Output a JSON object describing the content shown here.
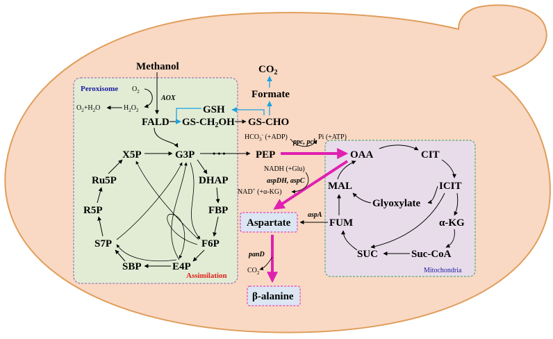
{
  "compartments": {
    "peroxisome": "Peroxisome",
    "assimilation": "Assimilation",
    "mitochondria": "Mitochondria"
  },
  "metabolites": {
    "methanol": "Methanol",
    "co2_top": "CO",
    "co2_sub": "2",
    "formate": "Formate",
    "gsh": "GSH",
    "fald": "FALD",
    "gs_ch2oh": "GS-CH",
    "gs_ch2oh_sub": "2",
    "gs_ch2oh_end": "OH",
    "gs_cho": "GS-CHO",
    "x5p": "X5P",
    "g3p": "G3P",
    "ru5p": "Ru5P",
    "dhap": "DHAP",
    "r5p": "R5P",
    "fbp": "FBP",
    "s7p": "S7P",
    "f6p": "F6P",
    "sbp": "SBP",
    "e4p": "E4P",
    "pep": "PEP",
    "oaa": "OAA",
    "cit": "CIT",
    "icit": "ICIT",
    "mal": "MAL",
    "glyoxylate": "Glyoxylate",
    "fum": "FUM",
    "akg": "α-KG",
    "suc": "SUC",
    "succoa": "Suc-CoA",
    "aspartate": "Aspartate",
    "balanine": "β-alanine"
  },
  "cofactors": {
    "o2": "O",
    "o2_sub": "2",
    "h2o2_a": "H",
    "h2o2_sub1": "2",
    "h2o2_b": "O",
    "h2o2_sub2": "2",
    "o2h2o_a": "O",
    "o2h2o_sub1": "2",
    "o2h2o_b": "+H",
    "o2h2o_sub2": "2",
    "o2h2o_c": "O",
    "hco3_a": "HCO",
    "hco3_sub": "3",
    "hco3_sup": "-",
    "hco3_b": " (+ADP)",
    "pi": "Pi (+ATP)",
    "nadh": "NADH (+Glu)",
    "nad_a": "NAD",
    "nad_sup": "+",
    "nad_b": " (+α-KG)",
    "co2_pand_a": "CO",
    "co2_pand_sub": "2"
  },
  "enzymes": {
    "aox": "AOX",
    "ppc_pck": "ppc, pck",
    "aspdh_aspc": "aspDH, aspC",
    "aspa": "aspA",
    "pand": "panD"
  },
  "colors": {
    "cell_fill": "#f9d9c4",
    "cell_stroke": "#e09d5a",
    "peroxisome_fill": "#e2ecd5",
    "mito_fill": "#e8dcea",
    "product_fill": "#dbe6f2",
    "magenta": "#e020b0",
    "blue": "#1aa3e0",
    "peroxisome_label": "#1a1aa0",
    "assimilation_label": "#e0201a",
    "mitochondria_label": "#1a1aa0"
  }
}
